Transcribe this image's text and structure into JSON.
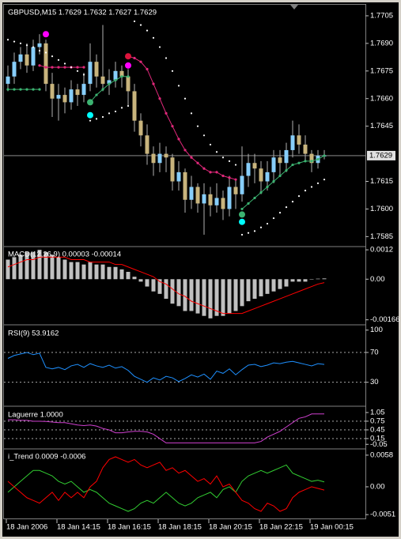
{
  "chart_data": [
    {
      "type": "candlestick",
      "title": "GBPUSD,M15  1.7629 1.7632 1.7627 1.7629",
      "categories": [
        "18 Jan 2006",
        null,
        null,
        null,
        null,
        null,
        null,
        null,
        "18 Jan 14:15",
        null,
        null,
        null,
        null,
        null,
        null,
        null,
        "18 Jan 16:15",
        null,
        null,
        null,
        null,
        null,
        null,
        null,
        "18 Jan 18:15",
        null,
        null,
        null,
        null,
        null,
        null,
        null,
        "18 Jan 20:15",
        null,
        null,
        null,
        null,
        null,
        null,
        null,
        "18 Jan 22:15",
        null,
        null,
        null,
        null,
        null,
        null,
        null,
        "19 Jan 00:15",
        null,
        null
      ],
      "open": [
        1.7668,
        1.7672,
        1.768,
        1.7684,
        1.7678,
        1.7688,
        1.769,
        1.7668,
        1.766,
        1.7662,
        1.7658,
        1.7665,
        1.7662,
        1.7668,
        1.768,
        1.7672,
        1.7668,
        1.767,
        1.7675,
        1.7672,
        1.7664,
        1.7648,
        1.764,
        1.763,
        1.7625,
        1.763,
        1.7628,
        1.7615,
        1.762,
        1.7605,
        1.7612,
        1.7603,
        1.7608,
        1.7602,
        1.7606,
        1.76,
        1.7612,
        1.7608,
        1.7618,
        1.7625,
        1.7622,
        1.7615,
        1.762,
        1.7628,
        1.7625,
        1.7632,
        1.764,
        1.7635,
        1.763,
        1.7625,
        1.7629
      ],
      "high": [
        1.7678,
        1.7685,
        1.7688,
        1.769,
        1.7692,
        1.7695,
        1.7692,
        1.7674,
        1.7668,
        1.7666,
        1.767,
        1.7668,
        1.7674,
        1.769,
        1.7684,
        1.77,
        1.7676,
        1.768,
        1.7678,
        1.7676,
        1.7668,
        1.7652,
        1.7646,
        1.7634,
        1.7636,
        1.7634,
        1.763,
        1.7626,
        1.7622,
        1.7618,
        1.7614,
        1.7614,
        1.7612,
        1.7614,
        1.761,
        1.7618,
        1.7616,
        1.7634,
        1.763,
        1.763,
        1.7626,
        1.7626,
        1.7632,
        1.7632,
        1.7636,
        1.7648,
        1.7646,
        1.764,
        1.7632,
        1.7632,
        1.7632
      ],
      "low": [
        1.7664,
        1.7668,
        1.7676,
        1.7674,
        1.7675,
        1.7684,
        1.7664,
        1.765,
        1.7648,
        1.7652,
        1.7654,
        1.7656,
        1.7658,
        1.7664,
        1.7666,
        1.7664,
        1.7662,
        1.7666,
        1.7666,
        1.7656,
        1.7642,
        1.7634,
        1.7624,
        1.7618,
        1.762,
        1.762,
        1.761,
        1.761,
        1.7598,
        1.76,
        1.7598,
        1.7586,
        1.7596,
        1.7598,
        1.7594,
        1.7596,
        1.76,
        1.7604,
        1.7612,
        1.7614,
        1.7608,
        1.761,
        1.7614,
        1.7618,
        1.762,
        1.7628,
        1.763,
        1.7626,
        1.762,
        1.7622,
        1.7627
      ],
      "close": [
        1.7672,
        1.768,
        1.7684,
        1.7678,
        1.7688,
        1.769,
        1.7668,
        1.766,
        1.7662,
        1.7658,
        1.7665,
        1.7662,
        1.7668,
        1.768,
        1.7672,
        1.7668,
        1.767,
        1.7675,
        1.7672,
        1.7664,
        1.7648,
        1.764,
        1.763,
        1.7625,
        1.763,
        1.7628,
        1.7615,
        1.762,
        1.7605,
        1.7612,
        1.7603,
        1.7608,
        1.7602,
        1.7606,
        1.76,
        1.7612,
        1.7608,
        1.7618,
        1.7625,
        1.7622,
        1.7615,
        1.762,
        1.7628,
        1.7625,
        1.7632,
        1.764,
        1.7635,
        1.763,
        1.7625,
        1.7629,
        1.7629
      ],
      "up_color": "#87cefa",
      "down_color": "#c8b47d",
      "wick_color": "#b0b0b0",
      "last_price": 1.7629,
      "ylim": [
        1.758,
        1.7711
      ],
      "yticks": [
        1.7705,
        {
          "value": 1.769,
          "label": "1.7690"
        },
        1.7675,
        {
          "value": 1.766,
          "label": "1.7660"
        },
        1.7645,
        1.7615,
        {
          "value": 1.76,
          "label": "1.7600"
        },
        1.7585
      ],
      "series": [
        {
          "style": "line-dots",
          "color": "#3cb371",
          "values": [
            1.7665,
            1.7665,
            1.7665,
            1.7665,
            1.7665,
            1.7665,
            null,
            null,
            null,
            null,
            null,
            null,
            null,
            1.7658,
            1.7662,
            1.7665,
            1.7668,
            1.767,
            1.7672,
            1.7672,
            null,
            null,
            null,
            null,
            null,
            null,
            null,
            null,
            null,
            null,
            null,
            null,
            null,
            null,
            null,
            null,
            null,
            1.76,
            1.7603,
            1.7606,
            1.7609,
            1.7612,
            1.7615,
            1.7618,
            1.7621,
            1.7624,
            1.7625,
            1.7626,
            1.7626,
            1.7627,
            1.7629
          ]
        },
        {
          "style": "line-dots",
          "color": "#e0287a",
          "values": [
            null,
            null,
            null,
            null,
            null,
            1.7678,
            1.7677,
            1.7677,
            1.7677,
            1.7677,
            1.7677,
            1.7677,
            1.7677,
            null,
            null,
            null,
            null,
            null,
            null,
            1.7683,
            1.7682,
            1.768,
            1.7676,
            1.7668,
            1.766,
            1.7652,
            1.7645,
            1.7638,
            1.7632,
            1.7628,
            1.7625,
            1.7622,
            1.762,
            1.762,
            1.7618,
            1.7617,
            1.7616,
            null,
            null,
            null,
            null,
            null,
            null,
            null,
            null,
            null,
            null,
            null,
            null,
            null,
            null
          ]
        },
        {
          "style": "dots",
          "color": "#ffffff",
          "values": [
            1.7692,
            1.7691,
            1.769,
            1.7689,
            1.7688,
            1.7686,
            1.7685,
            1.7683,
            1.7681,
            1.7679,
            1.7677,
            1.7675,
            1.7673,
            1.7648,
            1.7649,
            1.765,
            1.7652,
            1.7653,
            1.7655,
            1.7656,
            1.7702,
            1.77,
            1.7697,
            1.7693,
            1.7688,
            1.7682,
            1.7675,
            1.7667,
            1.766,
            1.7652,
            1.7645,
            1.764,
            1.7635,
            1.7631,
            1.7628,
            1.7626,
            1.7624,
            1.7586,
            1.7587,
            1.7588,
            1.759,
            1.7592,
            1.7595,
            1.7598,
            1.7601,
            1.7604,
            1.7607,
            1.761,
            1.7612,
            1.7614,
            1.7616
          ]
        }
      ],
      "markers": [
        {
          "color": "#ff00ff",
          "x": [
            6,
            19
          ],
          "values": [
            1.7695,
            1.7678
          ]
        },
        {
          "color": "#dc143c",
          "x": [
            19
          ],
          "values": [
            1.7683
          ]
        },
        {
          "color": "#3cb371",
          "x": [
            13,
            37
          ],
          "values": [
            1.7658,
            1.7597
          ]
        },
        {
          "color": "#00ffff",
          "x": [
            13,
            37
          ],
          "values": [
            1.7651,
            1.7593
          ]
        }
      ]
    },
    {
      "type": "indicator",
      "title": "MACD(12,26,9) 0.00003 -0.00014",
      "ylim": [
        -0.0018,
        0.0013
      ],
      "yticks": [
        0.0012,
        {
          "value": 0,
          "label": "0.00"
        },
        -0.00166
      ],
      "series": [
        {
          "style": "histogram",
          "color": "#c0c0c0",
          "values": [
            0.0008,
            0.0009,
            0.001,
            0.0011,
            0.0011,
            0.0012,
            0.0011,
            0.001,
            0.0009,
            0.0008,
            0.0007,
            0.0007,
            0.0006,
            0.0007,
            0.0006,
            0.0006,
            0.0005,
            0.0005,
            0.0004,
            0.0003,
            0.0001,
            -0.0001,
            -0.0003,
            -0.0005,
            -0.0006,
            -0.0008,
            -0.001,
            -0.0011,
            -0.0013,
            -0.0013,
            -0.0014,
            -0.0015,
            -0.0016,
            -0.0015,
            -0.0015,
            -0.0014,
            -0.0013,
            -0.0011,
            -0.0009,
            -0.0008,
            -0.0007,
            -0.0006,
            -0.0005,
            -0.0004,
            -0.0003,
            -0.0001,
            -0.0001,
            -0.0001,
            0,
            2e-05,
            3e-05
          ]
        },
        {
          "style": "line",
          "color": "#ff0000",
          "values": [
            0.0005,
            0.0006,
            0.0007,
            0.0008,
            0.0008,
            0.0009,
            0.0009,
            0.0009,
            0.0009,
            0.0009,
            0.0008,
            0.0008,
            0.0008,
            0.0007,
            0.0007,
            0.0007,
            0.0007,
            0.0006,
            0.0006,
            0.0005,
            0.0004,
            0.0003,
            0.0002,
            0.0001,
            -0.0001,
            -0.0002,
            -0.0004,
            -0.0006,
            -0.0007,
            -0.0009,
            -0.001,
            -0.0011,
            -0.0012,
            -0.0013,
            -0.0014,
            -0.0014,
            -0.0014,
            -0.0014,
            -0.0013,
            -0.0012,
            -0.0011,
            -0.001,
            -0.0009,
            -0.0008,
            -0.0007,
            -0.0006,
            -0.0005,
            -0.0004,
            -0.0003,
            -0.0002,
            -0.00014
          ]
        }
      ]
    },
    {
      "type": "indicator",
      "title": "RSI(9) 53.9162",
      "ylim": [
        0,
        106
      ],
      "yticks": [
        100,
        70,
        30
      ],
      "levels": [
        70,
        30
      ],
      "series": [
        {
          "style": "line",
          "color": "#1e90ff",
          "values": [
            62,
            66,
            68,
            70,
            67,
            69,
            50,
            48,
            50,
            47,
            52,
            54,
            50,
            55,
            52,
            50,
            53,
            49,
            51,
            46,
            38,
            34,
            30,
            36,
            33,
            38,
            36,
            31,
            35,
            40,
            37,
            41,
            34,
            45,
            42,
            48,
            40,
            47,
            53,
            54,
            51,
            53,
            56,
            55,
            57,
            58,
            56,
            54,
            52,
            55,
            53.9162
          ]
        }
      ]
    },
    {
      "type": "indicator",
      "title": "Laguerre 1.0000",
      "ylim": [
        -0.18,
        1.24
      ],
      "yticks": [
        1.05,
        0.75,
        0.45,
        0.15,
        -0.05
      ],
      "levels": [
        0.75,
        0.45,
        0.15
      ],
      "series": [
        {
          "style": "line",
          "color": "#d040d0",
          "values": [
            0.8,
            0.8,
            0.78,
            0.78,
            0.75,
            0.75,
            0.74,
            0.72,
            0.7,
            0.7,
            0.66,
            0.62,
            0.6,
            0.62,
            0.58,
            0.5,
            0.45,
            0.35,
            0.35,
            0.38,
            0.4,
            0.4,
            0.38,
            0.3,
            0.15,
            0,
            0,
            0,
            0,
            0,
            0,
            0,
            0,
            0,
            0,
            0,
            0,
            0,
            0,
            0,
            0.05,
            0.2,
            0.3,
            0.4,
            0.55,
            0.7,
            0.85,
            0.9,
            1,
            1,
            1
          ]
        }
      ]
    },
    {
      "type": "indicator",
      "title": "i_Trend 0.0009 -0.0006",
      "ylim": [
        -0.0058,
        0.0068
      ],
      "yticks": [
        0.0058,
        {
          "value": 0,
          "label": "0.00"
        },
        -0.0051
      ],
      "series": [
        {
          "style": "line",
          "color": "#32cd32",
          "values": [
            -0.001,
            0,
            0.001,
            0.002,
            0.003,
            0.003,
            0.0025,
            0.002,
            0.001,
            0.0005,
            0.001,
            0,
            -0.001,
            -0.0005,
            -0.001,
            -0.002,
            -0.003,
            -0.0035,
            -0.004,
            -0.0045,
            -0.004,
            -0.003,
            -0.0025,
            -0.003,
            -0.002,
            -0.001,
            -0.002,
            -0.003,
            -0.0035,
            -0.003,
            -0.002,
            -0.0015,
            -0.001,
            -0.002,
            -0.0005,
            0,
            -0.001,
            0.001,
            0.002,
            0.0025,
            0.003,
            0.0025,
            0.003,
            0.0035,
            0.004,
            0.0025,
            0.002,
            0.0015,
            0.001,
            0.0012,
            0.0009
          ]
        },
        {
          "style": "line",
          "color": "#ff0000",
          "values": [
            0.001,
            0,
            -0.001,
            -0.002,
            -0.0025,
            -0.003,
            -0.002,
            -0.001,
            -0.0025,
            -0.001,
            -0.002,
            -0.001,
            -0.002,
            0,
            0.001,
            0.0035,
            0.005,
            0.0055,
            0.005,
            0.0045,
            0.005,
            0.004,
            0.0035,
            0.004,
            0.0045,
            0.003,
            0.0035,
            0.0025,
            0.003,
            0.002,
            0.001,
            0.0015,
            0.0005,
            0.002,
            0,
            0.0005,
            -0.001,
            -0.0025,
            -0.003,
            -0.004,
            -0.0045,
            -0.003,
            -0.0035,
            -0.0045,
            -0.004,
            -0.002,
            -0.001,
            -0.0005,
            0,
            -0.0003,
            -0.0006
          ]
        }
      ]
    }
  ]
}
